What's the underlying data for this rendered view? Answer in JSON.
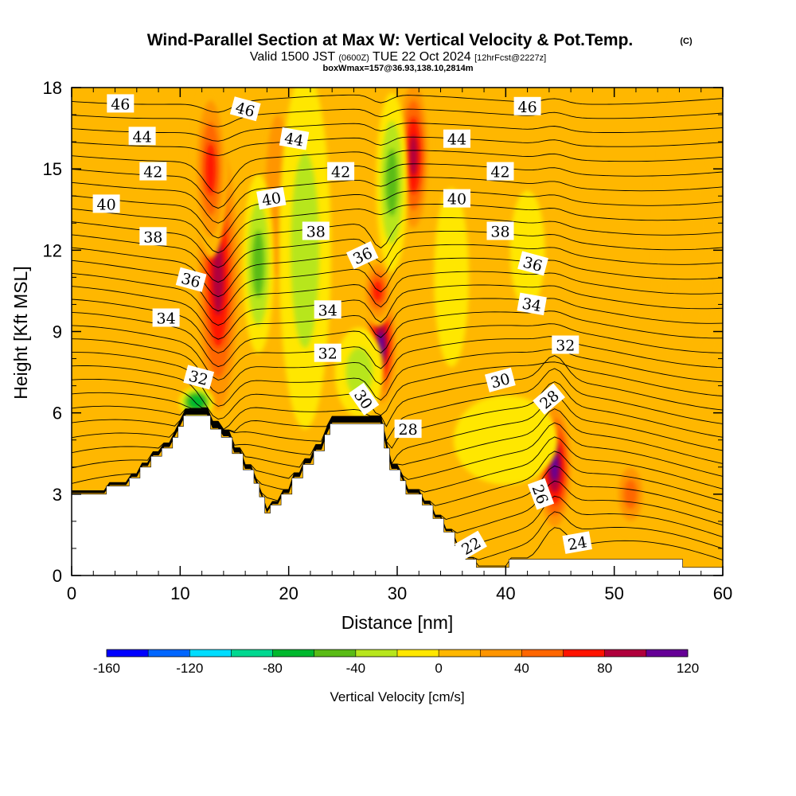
{
  "chart_data": {
    "type": "heatmap",
    "title": "Wind-Parallel Section at Max W: Vertical Velocity & Pot.Temp.",
    "title_mark": "(C)",
    "subtitle": {
      "prefix": "Valid 1500 JST ",
      "utc": "(0600Z)",
      "date": " TUE 22 Oct 2024 ",
      "forecast": "[12hrFcst@2227z]"
    },
    "subsubtitle": "boxWmax=157@36.93,138.10,2814m",
    "xlabel": "Distance [nm]",
    "ylabel": "Height [Kft MSL]",
    "xlim": [
      0,
      60
    ],
    "ylim": [
      0,
      18
    ],
    "x_ticks": [
      "0",
      "10",
      "20",
      "30",
      "40",
      "50",
      "60"
    ],
    "y_ticks": [
      "0",
      "3",
      "6",
      "9",
      "12",
      "15",
      "18"
    ],
    "colorbar": {
      "title": "Vertical Velocity [cm/s]",
      "tick_labels": [
        "-160",
        "-120",
        "-80",
        "-40",
        "0",
        "40",
        "80",
        "120"
      ],
      "colors": [
        "#0000ff",
        "#0066ff",
        "#00ddff",
        "#00d890",
        "#00b82e",
        "#5abb16",
        "#b7e61d",
        "#ffe700",
        "#ffb700",
        "#ff9500",
        "#ff6600",
        "#ff1400",
        "#b0003c",
        "#650096"
      ]
    },
    "terrain": [
      [
        0,
        3.0
      ],
      [
        3.2,
        3.0
      ],
      [
        3.2,
        3.3
      ],
      [
        5.3,
        3.3
      ],
      [
        5.3,
        3.6
      ],
      [
        6.3,
        3.6
      ],
      [
        6.3,
        4.0
      ],
      [
        7.3,
        4.0
      ],
      [
        7.3,
        4.4
      ],
      [
        8.3,
        4.4
      ],
      [
        8.3,
        4.7
      ],
      [
        9.3,
        4.7
      ],
      [
        9.3,
        5.1
      ],
      [
        9.8,
        5.1
      ],
      [
        9.8,
        5.5
      ],
      [
        10.3,
        5.5
      ],
      [
        10.3,
        5.9
      ],
      [
        12.8,
        5.9
      ],
      [
        12.8,
        5.4
      ],
      [
        13.8,
        5.4
      ],
      [
        13.8,
        5.1
      ],
      [
        14.8,
        5.1
      ],
      [
        14.8,
        4.5
      ],
      [
        15.8,
        4.5
      ],
      [
        15.8,
        3.9
      ],
      [
        16.8,
        3.9
      ],
      [
        16.8,
        3.4
      ],
      [
        17.3,
        3.4
      ],
      [
        17.3,
        2.9
      ],
      [
        17.8,
        2.9
      ],
      [
        17.8,
        2.3
      ],
      [
        18.3,
        2.3
      ],
      [
        18.3,
        2.6
      ],
      [
        19.3,
        2.6
      ],
      [
        19.3,
        3.0
      ],
      [
        20.3,
        3.0
      ],
      [
        20.3,
        3.6
      ],
      [
        21.3,
        3.6
      ],
      [
        21.3,
        4.1
      ],
      [
        22.3,
        4.1
      ],
      [
        22.3,
        4.6
      ],
      [
        23.3,
        4.6
      ],
      [
        23.3,
        5.2
      ],
      [
        23.8,
        5.2
      ],
      [
        23.8,
        5.6
      ],
      [
        28.8,
        5.6
      ],
      [
        28.8,
        4.7
      ],
      [
        29.3,
        4.7
      ],
      [
        29.3,
        3.9
      ],
      [
        30.3,
        3.9
      ],
      [
        30.3,
        3.5
      ],
      [
        30.8,
        3.5
      ],
      [
        30.8,
        3.0
      ],
      [
        32.3,
        3.0
      ],
      [
        32.3,
        2.6
      ],
      [
        33.3,
        2.6
      ],
      [
        33.3,
        2.1
      ],
      [
        34.3,
        2.1
      ],
      [
        34.3,
        1.6
      ],
      [
        35.3,
        1.6
      ],
      [
        35.3,
        1.1
      ],
      [
        36.3,
        1.1
      ],
      [
        36.3,
        0.6
      ],
      [
        37.3,
        0.6
      ],
      [
        37.3,
        0.3
      ],
      [
        40.3,
        0.3
      ],
      [
        40.3,
        0.6
      ],
      [
        56.3,
        0.6
      ],
      [
        56.3,
        0.3
      ],
      [
        60,
        0.3
      ]
    ],
    "vv_anomalies": [
      {
        "name": "updraft",
        "x": 13.5,
        "y": 11,
        "rx": 1.4,
        "ry": 5.5,
        "value": 90
      },
      {
        "name": "updraft",
        "x": 12.8,
        "y": 15,
        "rx": 1.0,
        "ry": 3,
        "value": 75
      },
      {
        "name": "updraft",
        "x": 28.5,
        "y": 8.5,
        "rx": 1.0,
        "ry": 2.3,
        "value": 100
      },
      {
        "name": "updraft",
        "x": 28.2,
        "y": 10.5,
        "rx": 0.9,
        "ry": 1.2,
        "value": 70
      },
      {
        "name": "updraft",
        "x": 31.5,
        "y": 15.5,
        "rx": 1.0,
        "ry": 3,
        "value": 80
      },
      {
        "name": "updraft",
        "x": 44.5,
        "y": 4.0,
        "rx": 1.1,
        "ry": 2.4,
        "value": 110
      },
      {
        "name": "updraft",
        "x": 51.5,
        "y": 3.0,
        "rx": 1.0,
        "ry": 1.3,
        "value": 50
      },
      {
        "name": "updraft",
        "x": 19,
        "y": 14,
        "rx": 1.3,
        "ry": 5,
        "value": 20
      },
      {
        "name": "updraft",
        "x": 57,
        "y": 12,
        "rx": 2,
        "ry": 6,
        "value": 15
      },
      {
        "name": "downdraft",
        "x": 17.2,
        "y": 11.5,
        "rx": 0.9,
        "ry": 3,
        "value": -50
      },
      {
        "name": "downdraft",
        "x": 21.5,
        "y": 12,
        "rx": 1.5,
        "ry": 6,
        "value": -25
      },
      {
        "name": "downdraft",
        "x": 29.5,
        "y": 14.5,
        "rx": 0.9,
        "ry": 3,
        "value": -55
      },
      {
        "name": "downdraft",
        "x": 11.5,
        "y": 6.4,
        "rx": 1.0,
        "ry": 0.5,
        "value": -80
      },
      {
        "name": "downdraft",
        "x": 26.5,
        "y": 7.5,
        "rx": 1.4,
        "ry": 1.5,
        "value": -35
      },
      {
        "name": "downdraft",
        "x": 35,
        "y": 11,
        "rx": 1,
        "ry": 3,
        "value": -20
      },
      {
        "name": "downdraft",
        "x": 42,
        "y": 12,
        "rx": 1,
        "ry": 2,
        "value": -20
      },
      {
        "name": "downdraft",
        "x": 40,
        "y": 5,
        "rx": 3,
        "ry": 1.5,
        "value": -10
      }
    ],
    "pot_temp_contours": {
      "levels": [
        22,
        24,
        26,
        28,
        30,
        32,
        34,
        36,
        38,
        40,
        42,
        44,
        46
      ],
      "labels": [
        {
          "text": "46",
          "x": 4.5,
          "y": 17.4,
          "angle": 0
        },
        {
          "text": "46",
          "x": 16.0,
          "y": 17.2,
          "angle": 15
        },
        {
          "text": "46",
          "x": 42.0,
          "y": 17.3,
          "angle": 0
        },
        {
          "text": "44",
          "x": 6.5,
          "y": 16.2,
          "angle": 0
        },
        {
          "text": "44",
          "x": 20.5,
          "y": 16.1,
          "angle": 10
        },
        {
          "text": "44",
          "x": 35.5,
          "y": 16.1,
          "angle": 0
        },
        {
          "text": "42",
          "x": 7.5,
          "y": 14.9,
          "angle": 0
        },
        {
          "text": "42",
          "x": 24.8,
          "y": 14.9,
          "angle": 0
        },
        {
          "text": "42",
          "x": 39.5,
          "y": 14.9,
          "angle": 0
        },
        {
          "text": "40",
          "x": 3.2,
          "y": 13.7,
          "angle": 0
        },
        {
          "text": "40",
          "x": 18.4,
          "y": 13.9,
          "angle": -10
        },
        {
          "text": "40",
          "x": 35.5,
          "y": 13.9,
          "angle": 0
        },
        {
          "text": "38",
          "x": 7.5,
          "y": 12.5,
          "angle": 0
        },
        {
          "text": "38",
          "x": 22.5,
          "y": 12.7,
          "angle": 0
        },
        {
          "text": "38",
          "x": 39.5,
          "y": 12.7,
          "angle": 0
        },
        {
          "text": "36",
          "x": 11.0,
          "y": 10.9,
          "angle": 15
        },
        {
          "text": "36",
          "x": 26.8,
          "y": 11.8,
          "angle": -25
        },
        {
          "text": "36",
          "x": 42.5,
          "y": 11.5,
          "angle": 15
        },
        {
          "text": "34",
          "x": 8.7,
          "y": 9.5,
          "angle": 0
        },
        {
          "text": "34",
          "x": 23.6,
          "y": 9.8,
          "angle": 0
        },
        {
          "text": "34",
          "x": 42.4,
          "y": 10.0,
          "angle": 10
        },
        {
          "text": "32",
          "x": 11.7,
          "y": 7.3,
          "angle": 15
        },
        {
          "text": "32",
          "x": 23.6,
          "y": 8.2,
          "angle": 0
        },
        {
          "text": "32",
          "x": 45.5,
          "y": 8.5,
          "angle": 0
        },
        {
          "text": "30",
          "x": 26.9,
          "y": 6.5,
          "angle": 55
        },
        {
          "text": "30",
          "x": 39.5,
          "y": 7.2,
          "angle": -15
        },
        {
          "text": "28",
          "x": 31.0,
          "y": 5.4,
          "angle": 0
        },
        {
          "text": "28",
          "x": 44.0,
          "y": 6.5,
          "angle": -40
        },
        {
          "text": "26",
          "x": 43.2,
          "y": 3.0,
          "angle": 70
        },
        {
          "text": "24",
          "x": 46.6,
          "y": 1.2,
          "angle": -10
        },
        {
          "text": "22",
          "x": 36.8,
          "y": 1.1,
          "angle": -30
        }
      ]
    }
  }
}
